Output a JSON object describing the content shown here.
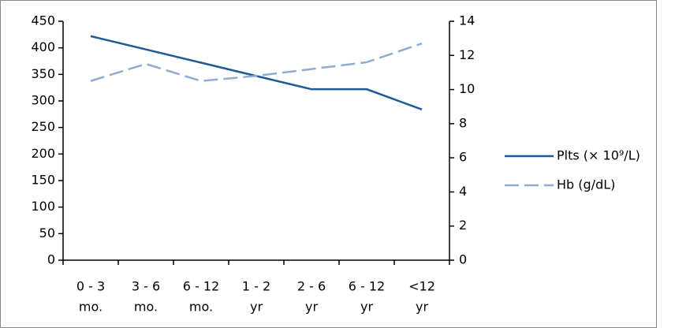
{
  "chart_data": {
    "type": "line",
    "categories": [
      [
        "0 - 3",
        "mo."
      ],
      [
        "3 - 6",
        "mo."
      ],
      [
        "6 - 12",
        "mo."
      ],
      [
        "1 - 2",
        "yr"
      ],
      [
        "2 - 6",
        "yr"
      ],
      [
        "6 - 12",
        "yr"
      ],
      [
        "<12",
        "yr"
      ]
    ],
    "series": [
      {
        "name": "Plts (× 10⁹/L)",
        "color": "#1f5a96",
        "dash": false,
        "values": [
          422,
          397,
          372,
          347,
          322,
          322,
          284
        ]
      },
      {
        "name": "Hb (g/dL)",
        "color": "#8fadd0",
        "dash": true,
        "axis": "y2",
        "values": [
          10.5,
          11.5,
          10.5,
          10.8,
          11.2,
          11.6,
          12.7
        ]
      }
    ],
    "ylim": [
      0,
      450
    ],
    "yticks": [
      0,
      50,
      100,
      150,
      200,
      250,
      300,
      350,
      400,
      450
    ],
    "y2lim": [
      0,
      14
    ],
    "y2ticks": [
      0,
      2,
      4,
      6,
      8,
      10,
      12,
      14
    ],
    "legend": "right"
  }
}
